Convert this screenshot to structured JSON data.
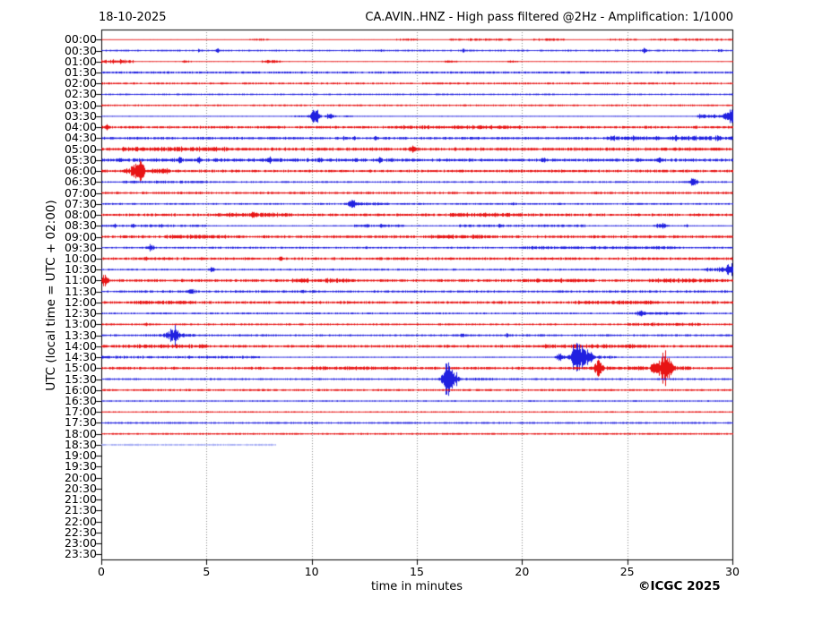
{
  "header": {
    "date": "18-10-2025",
    "title": "CA.AVIN..HNZ - High pass filtered @2Hz - Amplification: 1/1000"
  },
  "axes": {
    "ylabel": "UTC (local time = UTC + 02:00)",
    "xlabel": "time in minutes",
    "xticks": [
      0,
      5,
      10,
      15,
      20,
      25,
      30
    ],
    "xlim": [
      0,
      30
    ],
    "grid": "vertical dotted every 5 minutes"
  },
  "footer": {
    "copyright": "©ICGC 2025"
  },
  "chart_data": {
    "type": "line",
    "subtype": "helicorder-seismogram",
    "title": "CA.AVIN..HNZ - High pass filtered @2Hz - Amplification: 1/1000",
    "date": "18-10-2025",
    "xlabel": "time in minutes",
    "ylabel": "UTC (local time = UTC + 02:00)",
    "xlim": [
      0,
      30
    ],
    "row_interval_minutes": 30,
    "colors": {
      "r": "#e60000",
      "b": "#0d0ddd",
      "f": "#a9b0f5"
    },
    "rows": [
      {
        "t": "00:00",
        "c": "r",
        "base": 0.5,
        "noise": [
          [
            7,
            8,
            0.9
          ],
          [
            14,
            15,
            1
          ],
          [
            16.5,
            19.5,
            1
          ],
          [
            20.5,
            22,
            1.1
          ],
          [
            24,
            25.5,
            1
          ],
          [
            26,
            30,
            1.1
          ]
        ]
      },
      {
        "t": "00:30",
        "c": "b",
        "base": 0.6,
        "noise": [
          [
            0,
            30,
            0.5
          ]
        ],
        "events": [
          [
            4.65,
            0.07,
            2
          ],
          [
            5.5,
            0.07,
            2.5
          ],
          [
            13.3,
            0.06,
            1.5
          ],
          [
            17.2,
            0.09,
            2
          ],
          [
            25.8,
            0.08,
            3.5
          ],
          [
            29.4,
            0.08,
            2
          ]
        ]
      },
      {
        "t": "01:00",
        "c": "r",
        "base": 0.6,
        "noise": [
          [
            0,
            1.5,
            2.2
          ],
          [
            3.8,
            4.3,
            1.5
          ],
          [
            7.6,
            8.6,
            1.8
          ],
          [
            16.3,
            16.9,
            1.2
          ],
          [
            19.3,
            19.8,
            1
          ]
        ]
      },
      {
        "t": "01:30",
        "c": "b",
        "base": 0.9,
        "noise": [
          [
            0,
            30,
            0.4
          ]
        ]
      },
      {
        "t": "02:00",
        "c": "r",
        "base": 0.8,
        "noise": [
          [
            0,
            30,
            0.4
          ]
        ]
      },
      {
        "t": "02:30",
        "c": "b",
        "base": 0.7,
        "noise": [
          [
            0,
            30,
            0.3
          ]
        ]
      },
      {
        "t": "03:00",
        "c": "r",
        "base": 0.7,
        "noise": [
          [
            0,
            30,
            0.4
          ]
        ]
      },
      {
        "t": "03:30",
        "c": "b",
        "base": 0.6,
        "noise": [
          [
            9,
            12,
            0.6
          ],
          [
            28.3,
            29.6,
            2.2
          ]
        ],
        "events": [
          [
            10.15,
            0.18,
            11
          ],
          [
            10.85,
            0.13,
            5
          ],
          [
            29.92,
            0.3,
            9
          ]
        ]
      },
      {
        "t": "04:00",
        "c": "r",
        "base": 0.8,
        "noise": [
          [
            0,
            30,
            0.8
          ],
          [
            14,
            20,
            0.9
          ]
        ],
        "events": [
          [
            0.2,
            0.1,
            4
          ]
        ]
      },
      {
        "t": "04:30",
        "c": "b",
        "base": 0.8,
        "noise": [
          [
            0,
            30,
            0.8
          ],
          [
            24,
            30,
            1.4
          ]
        ],
        "events": [
          [
            11.5,
            0.07,
            2
          ],
          [
            12,
            0.07,
            2
          ],
          [
            13,
            0.07,
            2
          ],
          [
            24.3,
            0.08,
            2.3
          ],
          [
            25.3,
            0.08,
            2.3
          ],
          [
            26.5,
            0.08,
            2.5
          ],
          [
            27.3,
            0.08,
            2.3
          ],
          [
            28.2,
            0.08,
            2.3
          ],
          [
            29.3,
            0.08,
            2.5
          ]
        ]
      },
      {
        "t": "05:00",
        "c": "r",
        "base": 0.9,
        "noise": [
          [
            0,
            30,
            1.1
          ],
          [
            1,
            6,
            1.3
          ]
        ],
        "events": [
          [
            14.8,
            0.15,
            3.5
          ]
        ]
      },
      {
        "t": "05:30",
        "c": "b",
        "base": 0.9,
        "noise": [
          [
            0,
            14,
            1.4
          ],
          [
            14,
            30,
            1.1
          ]
        ],
        "events": [
          [
            0.9,
            0.1,
            2.5
          ],
          [
            3.7,
            0.1,
            2.5
          ],
          [
            4.6,
            0.1,
            2.5
          ],
          [
            8,
            0.1,
            2
          ],
          [
            10.4,
            0.1,
            2.2
          ],
          [
            13.2,
            0.1,
            2.4
          ],
          [
            17.5,
            0.1,
            2
          ],
          [
            21,
            0.1,
            2
          ],
          [
            25.6,
            0.1,
            2.2
          ],
          [
            26.5,
            0.1,
            2.2
          ]
        ]
      },
      {
        "t": "06:00",
        "c": "r",
        "base": 0.8,
        "noise": [
          [
            0,
            30,
            0.9
          ],
          [
            1,
            1.6,
            2.2
          ],
          [
            2.3,
            3.3,
            1.8
          ]
        ],
        "events": [
          [
            1.78,
            0.28,
            13
          ]
        ]
      },
      {
        "t": "06:30",
        "c": "b",
        "base": 0.7,
        "noise": [
          [
            0,
            30,
            0.4
          ],
          [
            1,
            5,
            0.7
          ]
        ],
        "events": [
          [
            28.15,
            0.18,
            5
          ]
        ]
      },
      {
        "t": "07:00",
        "c": "r",
        "base": 0.8,
        "noise": [
          [
            0,
            30,
            0.7
          ]
        ]
      },
      {
        "t": "07:30",
        "c": "b",
        "base": 0.7,
        "noise": [
          [
            0,
            30,
            0.4
          ],
          [
            12.3,
            13.6,
            0.9
          ]
        ],
        "events": [
          [
            11.93,
            0.2,
            5
          ],
          [
            19.6,
            0.08,
            1.5
          ]
        ]
      },
      {
        "t": "08:00",
        "c": "r",
        "base": 0.8,
        "noise": [
          [
            0,
            30,
            0.9
          ],
          [
            5.5,
            9,
            1.1
          ],
          [
            16.5,
            20,
            1.3
          ]
        ],
        "events": [
          [
            7.22,
            0.08,
            4
          ]
        ]
      },
      {
        "t": "08:30",
        "c": "b",
        "base": 0.7,
        "noise": [
          [
            0,
            5,
            1
          ],
          [
            12,
            14.5,
            1
          ],
          [
            17,
            23,
            0.9
          ]
        ],
        "events": [
          [
            0.6,
            0.08,
            1.8
          ],
          [
            1.5,
            0.08,
            1.8
          ],
          [
            2.8,
            0.08,
            1.8
          ],
          [
            12.6,
            0.08,
            1.8
          ],
          [
            13.3,
            0.08,
            1.8
          ],
          [
            18.9,
            0.08,
            1.6
          ],
          [
            26.6,
            0.22,
            4
          ],
          [
            27.8,
            0.08,
            1.6
          ]
        ]
      },
      {
        "t": "09:00",
        "c": "r",
        "base": 0.8,
        "noise": [
          [
            0,
            30,
            1
          ],
          [
            3,
            6,
            1.2
          ],
          [
            15.5,
            18.5,
            1.2
          ]
        ],
        "events": [
          [
            23.4,
            0.08,
            2
          ]
        ]
      },
      {
        "t": "09:30",
        "c": "b",
        "base": 0.7,
        "noise": [
          [
            0,
            30,
            0.5
          ],
          [
            20,
            27.5,
            0.9
          ]
        ],
        "events": [
          [
            2.35,
            0.16,
            4
          ],
          [
            12.6,
            0.07,
            1.5
          ]
        ]
      },
      {
        "t": "10:00",
        "c": "r",
        "base": 0.8,
        "noise": [
          [
            0,
            30,
            0.9
          ]
        ],
        "events": [
          [
            2.1,
            0.07,
            2
          ],
          [
            8.55,
            0.08,
            3
          ]
        ]
      },
      {
        "t": "10:30",
        "c": "b",
        "base": 0.7,
        "noise": [
          [
            0,
            30,
            0.5
          ],
          [
            28.6,
            29.6,
            1.8
          ]
        ],
        "events": [
          [
            5.25,
            0.13,
            3.5
          ],
          [
            29.9,
            0.28,
            8
          ]
        ]
      },
      {
        "t": "11:00",
        "c": "r",
        "base": 0.8,
        "noise": [
          [
            0,
            30,
            1
          ],
          [
            9,
            12,
            1.1
          ],
          [
            20,
            23,
            1.1
          ],
          [
            26,
            29,
            1.1
          ]
        ],
        "events": [
          [
            0.12,
            0.2,
            6
          ]
        ]
      },
      {
        "t": "11:30",
        "c": "b",
        "base": 0.7,
        "noise": [
          [
            0,
            30,
            0.8
          ]
        ],
        "events": [
          [
            4.25,
            0.18,
            2.5
          ],
          [
            9.6,
            0.07,
            1.5
          ]
        ]
      },
      {
        "t": "12:00",
        "c": "r",
        "base": 0.8,
        "noise": [
          [
            0,
            30,
            0.9
          ],
          [
            1.5,
            4.5,
            1.1
          ],
          [
            22.5,
            26.5,
            1.1
          ]
        ]
      },
      {
        "t": "12:30",
        "c": "b",
        "base": 0.7,
        "noise": [
          [
            0,
            30,
            0.4
          ],
          [
            25.9,
            27.8,
            0.8
          ]
        ],
        "events": [
          [
            25.62,
            0.2,
            4
          ]
        ]
      },
      {
        "t": "13:00",
        "c": "r",
        "base": 0.7,
        "noise": [
          [
            0,
            30,
            0.5
          ],
          [
            25,
            28.5,
            1.1
          ]
        ],
        "events": [
          [
            2.1,
            0.06,
            1.8
          ]
        ]
      },
      {
        "t": "13:30",
        "c": "b",
        "base": 0.7,
        "noise": [
          [
            0,
            30,
            0.6
          ],
          [
            2.5,
            4.5,
            0.9
          ]
        ],
        "events": [
          [
            3.45,
            0.3,
            10
          ],
          [
            17.15,
            0.08,
            2
          ],
          [
            19.25,
            0.08,
            2
          ]
        ]
      },
      {
        "t": "14:00",
        "c": "r",
        "base": 0.8,
        "noise": [
          [
            0,
            30,
            0.9
          ],
          [
            1,
            5,
            1.1
          ],
          [
            21,
            26,
            1.1
          ]
        ]
      },
      {
        "t": "14:30",
        "c": "b",
        "base": 0.7,
        "noise": [
          [
            0,
            7.5,
            1.1
          ],
          [
            21.5,
            24.5,
            1.4
          ]
        ],
        "events": [
          [
            21.8,
            0.15,
            4
          ],
          [
            22.65,
            0.28,
            29
          ],
          [
            23.15,
            0.18,
            9
          ]
        ]
      },
      {
        "t": "15:00",
        "c": "r",
        "base": 0.8,
        "noise": [
          [
            0,
            30,
            0.9
          ],
          [
            10,
            14,
            1
          ],
          [
            24,
            28,
            1.1
          ]
        ],
        "events": [
          [
            23.62,
            0.18,
            13
          ],
          [
            26.3,
            0.15,
            9
          ],
          [
            26.78,
            0.3,
            24
          ]
        ]
      },
      {
        "t": "15:30",
        "c": "b",
        "base": 0.7,
        "noise": [
          [
            0,
            30,
            0.5
          ],
          [
            17.3,
            18.6,
            0.8
          ]
        ],
        "events": [
          [
            16.42,
            0.22,
            25
          ],
          [
            16.82,
            0.15,
            10
          ]
        ]
      },
      {
        "t": "16:00",
        "c": "r",
        "base": 0.9,
        "noise": [
          [
            0,
            30,
            0.3
          ]
        ]
      },
      {
        "t": "16:30",
        "c": "b",
        "base": 0.6,
        "noise": [
          [
            0,
            30,
            0.3
          ]
        ]
      },
      {
        "t": "17:00",
        "c": "r",
        "base": 0.8
      },
      {
        "t": "17:30",
        "c": "b",
        "base": 1.0
      },
      {
        "t": "18:00",
        "c": "r",
        "base": 1.0
      },
      {
        "t": "18:30",
        "c": "f",
        "base": 1.2,
        "range": [
          0,
          8.25
        ]
      },
      {
        "t": "19:00"
      },
      {
        "t": "19:30"
      },
      {
        "t": "20:00"
      },
      {
        "t": "20:30"
      },
      {
        "t": "21:00"
      },
      {
        "t": "21:30"
      },
      {
        "t": "22:00"
      },
      {
        "t": "22:30"
      },
      {
        "t": "23:00"
      },
      {
        "t": "23:30"
      }
    ]
  }
}
